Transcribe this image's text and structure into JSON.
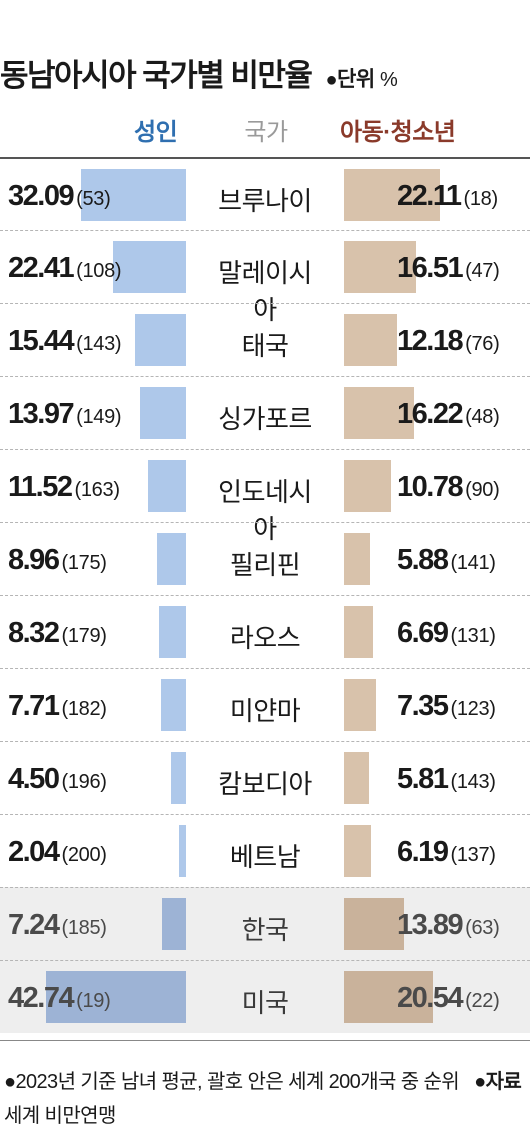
{
  "title": "동남아시아 국가별 비만율",
  "unit_marker": "●",
  "unit_label": "단위",
  "unit_symbol": "%",
  "headers": {
    "adult": "성인",
    "country": "국가",
    "youth": "아동·청소년"
  },
  "colors": {
    "adult_bar": "#aec8ea",
    "youth_bar": "#d8c2ab",
    "adult_head": "#2f6fb0",
    "youth_head": "#8a3a2a",
    "highlight_bg": "#eeeeee"
  },
  "footer": {
    "note_marker": "●",
    "note": "2023년 기준 남녀 평균, 괄호 안은 세계 200개국 중 순위",
    "source_marker": "●",
    "source_label": "자료",
    "source": "세계 비만연맹"
  },
  "chart_data": {
    "type": "bar",
    "title": "동남아시아 국가별 비만율",
    "categories": [
      "브루나이",
      "말레이시아",
      "태국",
      "싱가포르",
      "인도네시아",
      "필리핀",
      "라오스",
      "미얀마",
      "캄보디아",
      "베트남",
      "한국",
      "미국"
    ],
    "series": [
      {
        "name": "성인",
        "values": [
          32.09,
          22.41,
          15.44,
          13.97,
          11.52,
          8.96,
          8.32,
          7.71,
          4.5,
          2.04,
          7.24,
          42.74
        ],
        "labels": [
          "32.09",
          "22.41",
          "15.44",
          "13.97",
          "11.52",
          "8.96",
          "8.32",
          "7.71",
          "4.50",
          "2.04",
          "7.24",
          "42.74"
        ],
        "ranks": [
          "(53)",
          "(108)",
          "(143)",
          "(149)",
          "(163)",
          "(175)",
          "(179)",
          "(182)",
          "(196)",
          "(200)",
          "(185)",
          "(19)"
        ]
      },
      {
        "name": "아동·청소년",
        "values": [
          22.11,
          16.51,
          12.18,
          16.22,
          10.78,
          5.88,
          6.69,
          7.35,
          5.81,
          6.19,
          13.89,
          20.54
        ],
        "labels": [
          "22.11",
          "16.51",
          "12.18",
          "16.22",
          "10.78",
          "5.88",
          "6.69",
          "7.35",
          "5.81",
          "6.19",
          "13.89",
          "20.54"
        ],
        "ranks": [
          "(18)",
          "(47)",
          "(76)",
          "(48)",
          "(90)",
          "(141)",
          "(131)",
          "(123)",
          "(143)",
          "(137)",
          "(63)",
          "(22)"
        ]
      }
    ],
    "highlighted": [
      "한국",
      "미국"
    ],
    "legend_position": "top"
  }
}
